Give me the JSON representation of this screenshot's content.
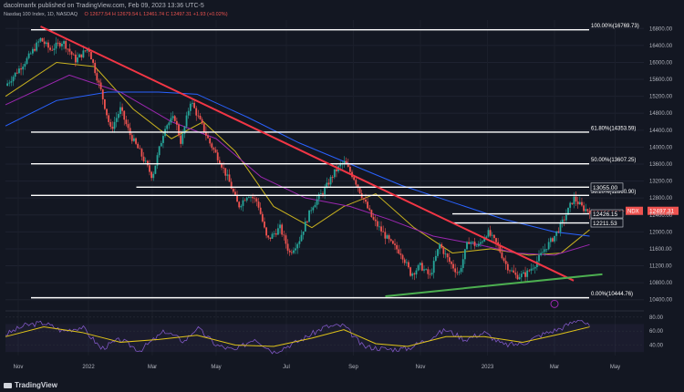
{
  "header": {
    "published": "dacolmanfx published on TradingView.com, Feb 09, 2023 13:36 UTC-5",
    "symbol": "Nasdaq 100 Index, 1D, NASDAQ",
    "ohlc": "O 12677.54  H 12679.54  L 12461.74  C 12497.31  +1.93 (+0.02%)"
  },
  "footer": {
    "brand": "TradingView"
  },
  "colors": {
    "background": "#131722",
    "up": "#26a69a",
    "down": "#ef5350",
    "trendline_down": "#f23645",
    "trendline_up": "#4caf50",
    "ma_short": "#c9b21f",
    "ma_mid": "#9c27b0",
    "ma_long": "#2962ff",
    "rsi": "#7e57c2",
    "rsi_signal": "#e0c419",
    "level": "#ffffff"
  },
  "chart_data": {
    "type": "candlestick",
    "title": "Nasdaq 100 Index, 1D, NASDAQ",
    "x_ticks": [
      "Nov",
      "2022",
      "Mar",
      "May",
      "Jul",
      "Sep",
      "Nov",
      "2023",
      "Mar",
      "May"
    ],
    "y_ticks": [
      10400,
      10800,
      11200,
      11600,
      12000,
      12400,
      12800,
      13200,
      13600,
      14000,
      14400,
      14800,
      15200,
      15600,
      16000,
      16400,
      16800
    ],
    "ylim": [
      10200,
      17000
    ],
    "price_path": [
      {
        "t": 0,
        "p": 15450
      },
      {
        "t": 0.035,
        "p": 16100
      },
      {
        "t": 0.055,
        "p": 16550
      },
      {
        "t": 0.07,
        "p": 16300
      },
      {
        "t": 0.09,
        "p": 16500
      },
      {
        "t": 0.11,
        "p": 16050
      },
      {
        "t": 0.13,
        "p": 16350
      },
      {
        "t": 0.15,
        "p": 15300
      },
      {
        "t": 0.165,
        "p": 14400
      },
      {
        "t": 0.18,
        "p": 14900
      },
      {
        "t": 0.195,
        "p": 14300
      },
      {
        "t": 0.21,
        "p": 13900
      },
      {
        "t": 0.23,
        "p": 13300
      },
      {
        "t": 0.25,
        "p": 14500
      },
      {
        "t": 0.265,
        "p": 14700
      },
      {
        "t": 0.275,
        "p": 14100
      },
      {
        "t": 0.29,
        "p": 15100
      },
      {
        "t": 0.305,
        "p": 14600
      },
      {
        "t": 0.32,
        "p": 14100
      },
      {
        "t": 0.335,
        "p": 13700
      },
      {
        "t": 0.35,
        "p": 13200
      },
      {
        "t": 0.365,
        "p": 12600
      },
      {
        "t": 0.38,
        "p": 12900
      },
      {
        "t": 0.395,
        "p": 12700
      },
      {
        "t": 0.41,
        "p": 11800
      },
      {
        "t": 0.43,
        "p": 12100
      },
      {
        "t": 0.445,
        "p": 11500
      },
      {
        "t": 0.46,
        "p": 11800
      },
      {
        "t": 0.48,
        "p": 12600
      },
      {
        "t": 0.5,
        "p": 13000
      },
      {
        "t": 0.515,
        "p": 13400
      },
      {
        "t": 0.53,
        "p": 13650
      },
      {
        "t": 0.545,
        "p": 13300
      },
      {
        "t": 0.56,
        "p": 12800
      },
      {
        "t": 0.575,
        "p": 12300
      },
      {
        "t": 0.59,
        "p": 12000
      },
      {
        "t": 0.605,
        "p": 11700
      },
      {
        "t": 0.62,
        "p": 11500
      },
      {
        "t": 0.635,
        "p": 11000
      },
      {
        "t": 0.65,
        "p": 11200
      },
      {
        "t": 0.665,
        "p": 10950
      },
      {
        "t": 0.68,
        "p": 11700
      },
      {
        "t": 0.695,
        "p": 11300
      },
      {
        "t": 0.71,
        "p": 11000
      },
      {
        "t": 0.725,
        "p": 11800
      },
      {
        "t": 0.74,
        "p": 11650
      },
      {
        "t": 0.755,
        "p": 12000
      },
      {
        "t": 0.77,
        "p": 11700
      },
      {
        "t": 0.785,
        "p": 11200
      },
      {
        "t": 0.8,
        "p": 10950
      },
      {
        "t": 0.815,
        "p": 11000
      },
      {
        "t": 0.83,
        "p": 11250
      },
      {
        "t": 0.845,
        "p": 11600
      },
      {
        "t": 0.86,
        "p": 11900
      },
      {
        "t": 0.875,
        "p": 12300
      },
      {
        "t": 0.89,
        "p": 12800
      },
      {
        "t": 0.905,
        "p": 12550
      },
      {
        "t": 0.915,
        "p": 12497
      }
    ],
    "moving_averages": [
      {
        "name": "short",
        "color": "#c9b21f",
        "path": [
          {
            "t": 0,
            "p": 15200
          },
          {
            "t": 0.08,
            "p": 16000
          },
          {
            "t": 0.14,
            "p": 15900
          },
          {
            "t": 0.2,
            "p": 14900
          },
          {
            "t": 0.26,
            "p": 14200
          },
          {
            "t": 0.31,
            "p": 14600
          },
          {
            "t": 0.36,
            "p": 13900
          },
          {
            "t": 0.42,
            "p": 12600
          },
          {
            "t": 0.48,
            "p": 12100
          },
          {
            "t": 0.53,
            "p": 12600
          },
          {
            "t": 0.58,
            "p": 12900
          },
          {
            "t": 0.64,
            "p": 12100
          },
          {
            "t": 0.7,
            "p": 11500
          },
          {
            "t": 0.76,
            "p": 11600
          },
          {
            "t": 0.82,
            "p": 11450
          },
          {
            "t": 0.87,
            "p": 11500
          },
          {
            "t": 0.915,
            "p": 12050
          }
        ]
      },
      {
        "name": "mid",
        "color": "#9c27b0",
        "path": [
          {
            "t": 0,
            "p": 15000
          },
          {
            "t": 0.1,
            "p": 15700
          },
          {
            "t": 0.18,
            "p": 15300
          },
          {
            "t": 0.26,
            "p": 14600
          },
          {
            "t": 0.33,
            "p": 14200
          },
          {
            "t": 0.4,
            "p": 13300
          },
          {
            "t": 0.47,
            "p": 12800
          },
          {
            "t": 0.54,
            "p": 12600
          },
          {
            "t": 0.6,
            "p": 12300
          },
          {
            "t": 0.67,
            "p": 11900
          },
          {
            "t": 0.74,
            "p": 11700
          },
          {
            "t": 0.8,
            "p": 11500
          },
          {
            "t": 0.86,
            "p": 11450
          },
          {
            "t": 0.915,
            "p": 11700
          }
        ]
      },
      {
        "name": "long",
        "color": "#2962ff",
        "path": [
          {
            "t": 0,
            "p": 14500
          },
          {
            "t": 0.08,
            "p": 15100
          },
          {
            "t": 0.16,
            "p": 15300
          },
          {
            "t": 0.24,
            "p": 15300
          },
          {
            "t": 0.3,
            "p": 15250
          },
          {
            "t": 0.38,
            "p": 14700
          },
          {
            "t": 0.46,
            "p": 14100
          },
          {
            "t": 0.54,
            "p": 13600
          },
          {
            "t": 0.62,
            "p": 13100
          },
          {
            "t": 0.7,
            "p": 12700
          },
          {
            "t": 0.78,
            "p": 12300
          },
          {
            "t": 0.86,
            "p": 12000
          },
          {
            "t": 0.915,
            "p": 11900
          }
        ]
      }
    ],
    "trendlines": [
      {
        "name": "descending",
        "color": "#f23645",
        "from": {
          "t": 0.055,
          "p": 16850
        },
        "to": {
          "t": 0.89,
          "p": 10850
        }
      },
      {
        "name": "ascending",
        "color": "#4caf50",
        "from": {
          "t": 0.595,
          "p": 10480
        },
        "to": {
          "t": 0.935,
          "p": 11000
        }
      }
    ],
    "levels": [
      {
        "label": "100.00%(16769.73)",
        "value": 16769.73,
        "t_start": 0.04
      },
      {
        "label": "61.80%(14353.59)",
        "value": 14353.59,
        "t_start": 0.04
      },
      {
        "label": "50.00%(13607.25)",
        "value": 13607.25,
        "t_start": 0.04
      },
      {
        "label": "38.20%(12860.90)",
        "value": 12860.9,
        "t_start": 0.04
      },
      {
        "label": "0.00%(10444.76)",
        "value": 10444.76,
        "t_start": 0.04
      },
      {
        "label": "13055.00",
        "value": 13055.0,
        "t_start": 0.205,
        "boxed": true
      },
      {
        "label": "12426.15",
        "value": 12426.15,
        "t_start": 0.7,
        "boxed": true
      },
      {
        "label": "12211.53",
        "value": 12211.53,
        "t_start": 0.7,
        "boxed": true
      }
    ],
    "current": {
      "label": "NDX",
      "value": 12497.31,
      "value_label": "12497.31"
    },
    "rsi": {
      "y_ticks": [
        40,
        60,
        80
      ],
      "ylim": [
        25,
        85
      ],
      "path": [
        {
          "t": 0,
          "p": 55
        },
        {
          "t": 0.03,
          "p": 68
        },
        {
          "t": 0.06,
          "p": 72
        },
        {
          "t": 0.09,
          "p": 60
        },
        {
          "t": 0.12,
          "p": 66
        },
        {
          "t": 0.15,
          "p": 35
        },
        {
          "t": 0.18,
          "p": 48
        },
        {
          "t": 0.21,
          "p": 32
        },
        {
          "t": 0.25,
          "p": 60
        },
        {
          "t": 0.28,
          "p": 45
        },
        {
          "t": 0.3,
          "p": 65
        },
        {
          "t": 0.33,
          "p": 40
        },
        {
          "t": 0.36,
          "p": 32
        },
        {
          "t": 0.39,
          "p": 50
        },
        {
          "t": 0.42,
          "p": 30
        },
        {
          "t": 0.46,
          "p": 46
        },
        {
          "t": 0.5,
          "p": 66
        },
        {
          "t": 0.53,
          "p": 68
        },
        {
          "t": 0.56,
          "p": 38
        },
        {
          "t": 0.6,
          "p": 34
        },
        {
          "t": 0.63,
          "p": 35
        },
        {
          "t": 0.66,
          "p": 48
        },
        {
          "t": 0.69,
          "p": 62
        },
        {
          "t": 0.72,
          "p": 48
        },
        {
          "t": 0.75,
          "p": 58
        },
        {
          "t": 0.78,
          "p": 40
        },
        {
          "t": 0.81,
          "p": 42
        },
        {
          "t": 0.84,
          "p": 55
        },
        {
          "t": 0.87,
          "p": 64
        },
        {
          "t": 0.9,
          "p": 78
        },
        {
          "t": 0.915,
          "p": 66
        }
      ],
      "signal": [
        {
          "t": 0,
          "p": 52
        },
        {
          "t": 0.06,
          "p": 66
        },
        {
          "t": 0.12,
          "p": 58
        },
        {
          "t": 0.18,
          "p": 44
        },
        {
          "t": 0.24,
          "p": 48
        },
        {
          "t": 0.3,
          "p": 54
        },
        {
          "t": 0.36,
          "p": 40
        },
        {
          "t": 0.42,
          "p": 38
        },
        {
          "t": 0.48,
          "p": 50
        },
        {
          "t": 0.53,
          "p": 62
        },
        {
          "t": 0.58,
          "p": 42
        },
        {
          "t": 0.63,
          "p": 38
        },
        {
          "t": 0.69,
          "p": 52
        },
        {
          "t": 0.75,
          "p": 52
        },
        {
          "t": 0.81,
          "p": 44
        },
        {
          "t": 0.87,
          "p": 56
        },
        {
          "t": 0.915,
          "p": 66
        }
      ]
    }
  }
}
